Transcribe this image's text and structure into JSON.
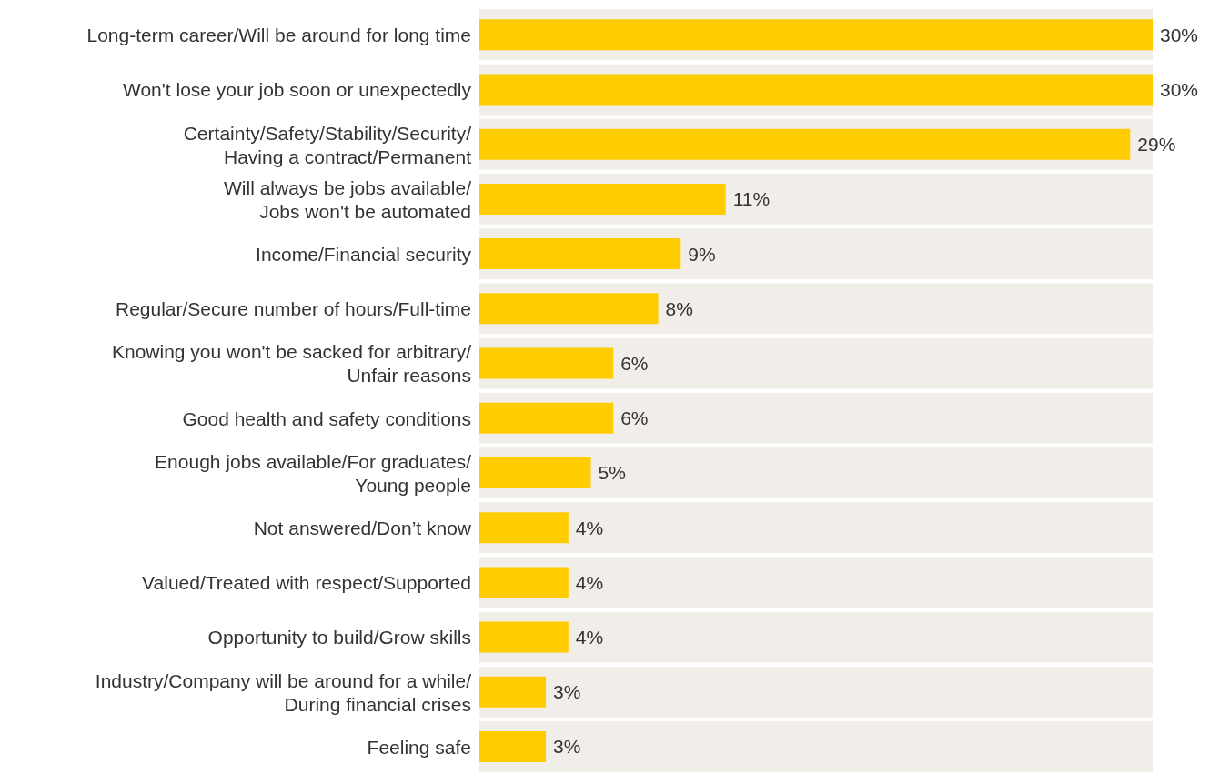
{
  "chart_data": {
    "type": "bar",
    "orientation": "horizontal",
    "categories": [
      "Long-term career/Will be around for long time",
      "Won't lose your job soon or unexpectedly",
      "Certainty/Safety/Stability/Security/\nHaving a contract/Permanent",
      "Will always be jobs available/\nJobs won't be automated",
      "Income/Financial security",
      "Regular/Secure number of hours/Full-time",
      "Knowing you won't be sacked for arbitrary/\nUnfair reasons",
      "Good health and safety conditions",
      "Enough jobs available/For graduates/\nYoung people",
      "Not answered/Don’t know",
      "Valued/Treated with respect/Supported",
      "Opportunity to build/Grow skills",
      "Industry/Company will be around for a while/\nDuring financial crises",
      "Feeling safe"
    ],
    "values": [
      30,
      30,
      29,
      11,
      9,
      8,
      6,
      6,
      5,
      4,
      4,
      4,
      3,
      3
    ],
    "value_labels": [
      "30%",
      "30%",
      "29%",
      "11%",
      "9%",
      "8%",
      "6%",
      "6%",
      "5%",
      "4%",
      "4%",
      "4%",
      "3%",
      "3%"
    ],
    "color": "#ffcc00"
  }
}
